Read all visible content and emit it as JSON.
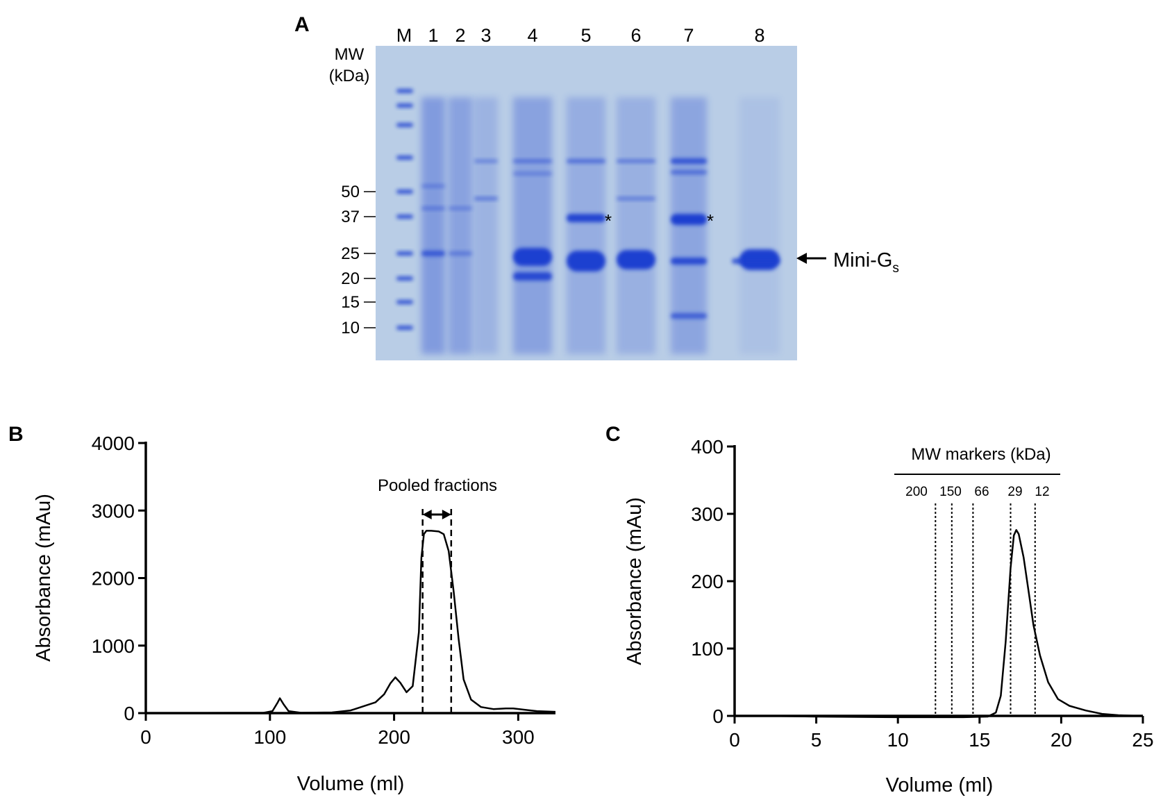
{
  "panelA": {
    "letter": "A",
    "lanes": [
      "M",
      "1",
      "2",
      "3",
      "4",
      "5",
      "6",
      "7",
      "8"
    ],
    "mw_title_line1": "MW",
    "mw_title_line2": "(kDa)",
    "mw_markers": [
      "50",
      "37",
      "25",
      "20",
      "15",
      "10"
    ],
    "asterisk": "*",
    "protein_label": "Mini-G",
    "protein_subscript": "s",
    "gel_color": "#b9cde6",
    "band_color": "#1f3fd0"
  },
  "panelB": {
    "letter": "B",
    "annotation": "Pooled fractions"
  },
  "panelC": {
    "letter": "C",
    "annotation": "MW markers (kDa)",
    "marker_values": [
      "200",
      "150",
      "66",
      "29",
      "12"
    ]
  },
  "chart_data": [
    {
      "type": "line",
      "panel": "B",
      "xlabel": "Volume (ml)",
      "ylabel": "Absorbance (mAu)",
      "xlim": [
        0,
        330
      ],
      "ylim": [
        0,
        4000
      ],
      "xticks": [
        0,
        100,
        200,
        300
      ],
      "yticks": [
        0,
        1000,
        2000,
        3000,
        4000
      ],
      "series": [
        {
          "x": [
            0,
            95,
            102,
            106,
            108,
            111,
            115,
            125,
            150,
            165,
            175,
            185,
            192,
            197,
            201,
            205,
            210,
            215,
            220,
            222,
            224,
            226,
            230,
            236,
            240,
            244,
            248,
            252,
            256,
            262,
            270,
            280,
            290,
            296,
            305,
            315,
            330
          ],
          "y": [
            0,
            5,
            30,
            150,
            220,
            130,
            30,
            5,
            10,
            40,
            100,
            160,
            280,
            440,
            530,
            450,
            310,
            400,
            1200,
            2300,
            2650,
            2700,
            2700,
            2690,
            2650,
            2400,
            1800,
            1100,
            500,
            200,
            90,
            60,
            70,
            70,
            50,
            30,
            20
          ]
        }
      ],
      "pooled_range": [
        223,
        246
      ]
    },
    {
      "type": "line",
      "panel": "C",
      "xlabel": "Volume (ml)",
      "ylabel": "Absorbance (mAu)",
      "xlim": [
        0,
        25
      ],
      "ylim": [
        0,
        400
      ],
      "xticks": [
        0,
        5,
        10,
        15,
        20,
        25
      ],
      "yticks": [
        0,
        100,
        200,
        300,
        400
      ],
      "series": [
        {
          "x": [
            2,
            5,
            10,
            14,
            15.5,
            16.0,
            16.3,
            16.6,
            16.9,
            17.1,
            17.25,
            17.4,
            17.7,
            18.0,
            18.3,
            18.7,
            19.2,
            19.8,
            20.5,
            21.5,
            22.5,
            23.5,
            24.7
          ],
          "y": [
            0,
            -1,
            -2,
            -2,
            -1,
            5,
            30,
            110,
            220,
            268,
            276,
            270,
            235,
            185,
            135,
            90,
            50,
            25,
            15,
            8,
            3,
            1,
            0
          ]
        }
      ],
      "marker_volumes": [
        12.3,
        13.3,
        14.6,
        16.9,
        18.4
      ]
    }
  ]
}
